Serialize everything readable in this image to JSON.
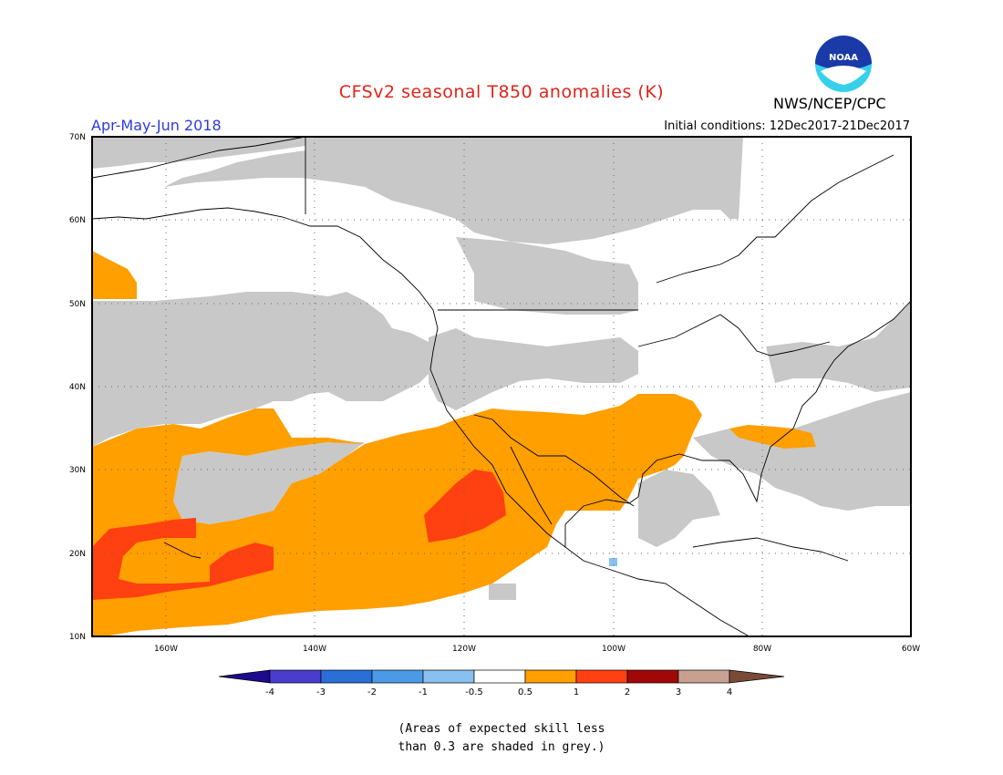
{
  "title": "CFSv2 seasonal T850 anomalies (K)",
  "period": "Apr-May-Jun 2018",
  "initial_conditions": "Initial conditions: 12Dec2017-21Dec2017",
  "agency": "NWS/NCEP/CPC",
  "logo_text": "NOAA",
  "note_line1": "(Areas of expected skill less",
  "note_line2": "than 0.3 are shaded in grey.)",
  "map": {
    "lon_range": [
      -170,
      -60
    ],
    "lat_range": [
      10,
      70
    ],
    "lon_ticks": [
      "160W",
      "140W",
      "120W",
      "100W",
      "80W",
      "60W"
    ],
    "lat_ticks": [
      "70N",
      "60N",
      "50N",
      "40N",
      "30N",
      "20N",
      "10N"
    ]
  },
  "colorbar": {
    "labels": [
      "-4",
      "-3",
      "-2",
      "-1",
      "-0.5",
      "0.5",
      "1",
      "2",
      "3",
      "4"
    ],
    "colors": [
      "#1e0a8c",
      "#4a3ccc",
      "#2a6ed8",
      "#4a9ae8",
      "#88c0f0",
      "#ffffff",
      "#ff9f00",
      "#ff4010",
      "#a00808",
      "#c8a090",
      "#7a4a38"
    ]
  },
  "colors": {
    "grey": "#c8c8c8",
    "orange": "#ff9f00",
    "red": "#ff4010",
    "lightblue": "#88c0f0"
  }
}
